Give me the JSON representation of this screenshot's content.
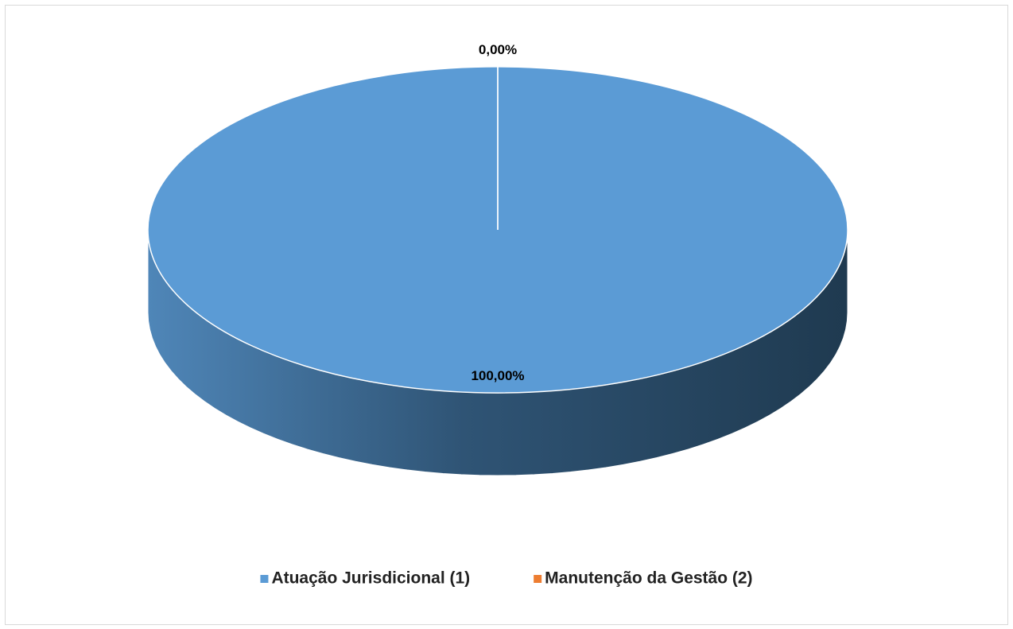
{
  "chart_data": {
    "type": "pie",
    "categories": [
      "Atuação Jurisdicional (1)",
      "Manutenção da Gestão (2)"
    ],
    "values": [
      100,
      0
    ],
    "value_labels": [
      "100,00%",
      "0,00%"
    ],
    "colors": [
      "#5b9bd5",
      "#ed7d31"
    ],
    "legend": "bottom"
  }
}
